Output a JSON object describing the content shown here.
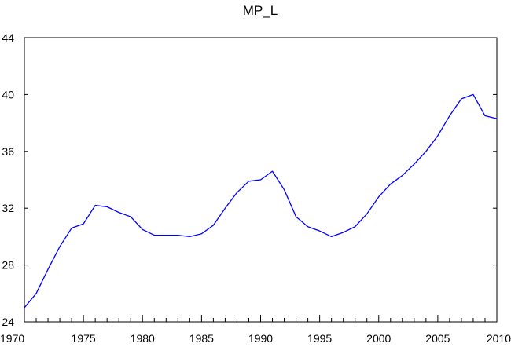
{
  "chart_data": {
    "type": "line",
    "title": "MP_L",
    "xlabel": "",
    "ylabel": "",
    "xlim": [
      1970,
      2010
    ],
    "ylim": [
      24,
      44
    ],
    "x_ticks": [
      1970,
      1975,
      1980,
      1985,
      1990,
      1995,
      2000,
      2005,
      2010
    ],
    "y_ticks": [
      24,
      28,
      32,
      36,
      40,
      44
    ],
    "grid": false,
    "series": [
      {
        "color": "#0000ff",
        "x": [
          1970,
          1971,
          1972,
          1973,
          1974,
          1975,
          1976,
          1977,
          1978,
          1979,
          1980,
          1981,
          1982,
          1983,
          1984,
          1985,
          1986,
          1987,
          1988,
          1989,
          1990,
          1991,
          1992,
          1993,
          1994,
          1995,
          1996,
          1997,
          1998,
          1999,
          2000,
          2001,
          2002,
          2003,
          2004,
          2005,
          2006,
          2007,
          2008,
          2009,
          2010
        ],
        "values": [
          25.0,
          26.0,
          27.7,
          29.3,
          30.6,
          30.9,
          32.2,
          32.1,
          31.7,
          31.4,
          30.5,
          30.1,
          30.1,
          30.1,
          30.0,
          30.2,
          30.8,
          32.0,
          33.1,
          33.9,
          34.0,
          34.6,
          33.3,
          31.4,
          30.7,
          30.4,
          30.0,
          30.3,
          30.7,
          31.6,
          32.8,
          33.7,
          34.3,
          35.1,
          36.0,
          37.1,
          38.5,
          39.7,
          40.0,
          38.5,
          38.3
        ]
      }
    ]
  }
}
